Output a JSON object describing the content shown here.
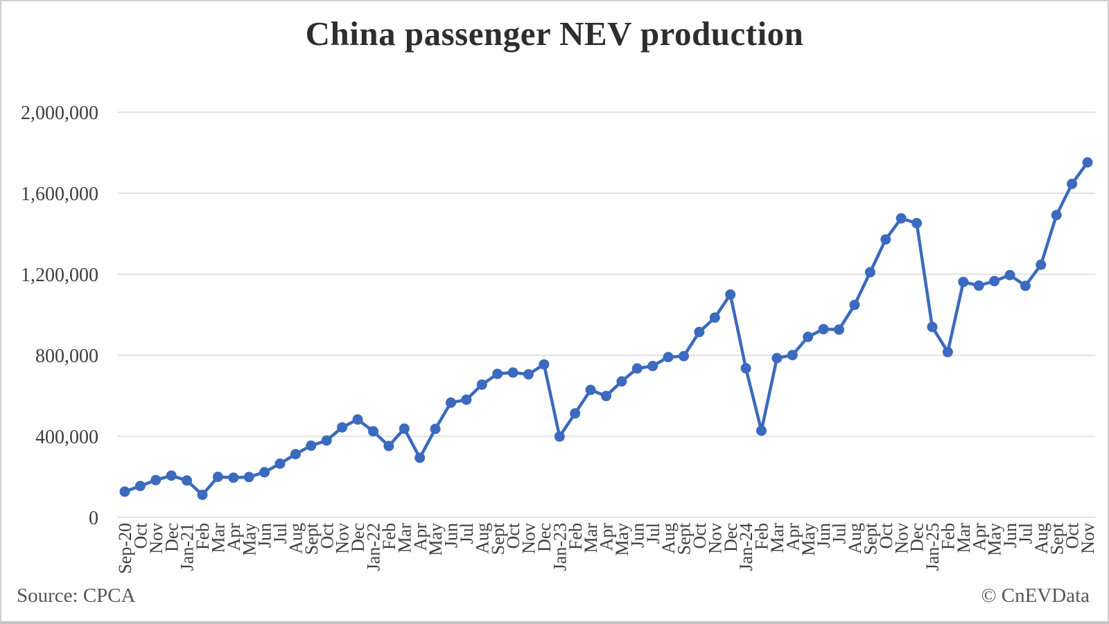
{
  "title": "China passenger NEV production",
  "footer": {
    "source": "Source: CPCA",
    "copyright": "© CnEVData"
  },
  "colors": {
    "line": "#3B6ABE",
    "grid": "#D9D9D9",
    "title_text": "#2E2E2E",
    "axis_text": "#3D3D3D",
    "footer_text": "#555555",
    "background": "#FFFFFF",
    "frame_border": "#CFCFCF"
  },
  "chart_data": {
    "type": "line",
    "title": "China passenger NEV production",
    "series_name": "China passenger NEV monthly production (units)",
    "legend": "none",
    "grid": "horizontal",
    "marker": "circle",
    "ylim": [
      0,
      2000000
    ],
    "ytick_labels": [
      "0",
      "400,000",
      "800,000",
      "1,200,000",
      "1,600,000",
      "2,000,000"
    ],
    "categories": [
      "Sep-20",
      "Oct",
      "Nov",
      "Dec",
      "Jan-21",
      "Feb",
      "Mar",
      "Apr",
      "May",
      "Jun",
      "Jul",
      "Aug",
      "Sept",
      "Oct",
      "Nov",
      "Dec",
      "Jan-22",
      "Feb",
      "Mar",
      "Apr",
      "May",
      "Jun",
      "Jul",
      "Aug",
      "Sept",
      "Oct",
      "Nov",
      "Dec",
      "Jan-23",
      "Feb",
      "Mar",
      "Apr",
      "May",
      "Jun",
      "Jul",
      "Aug",
      "Sept",
      "Oct",
      "Nov",
      "Dec",
      "Jan-24",
      "Feb",
      "Mar",
      "Apr",
      "May",
      "Jun",
      "Jul",
      "Aug",
      "Sept",
      "Oct",
      "Nov",
      "Dec",
      "Jan-25",
      "Feb",
      "Mar",
      "Apr",
      "May",
      "Jun",
      "Jul",
      "Aug",
      "Sept",
      "Oct",
      "Nov"
    ],
    "values": [
      127000,
      155000,
      184000,
      206000,
      182000,
      111000,
      200000,
      196000,
      199000,
      223000,
      265000,
      312000,
      354000,
      379000,
      444000,
      483000,
      425000,
      352000,
      438000,
      294000,
      437000,
      566000,
      581000,
      655000,
      708000,
      715000,
      706000,
      755000,
      399000,
      513000,
      629000,
      599000,
      671000,
      735000,
      747000,
      791000,
      796000,
      915000,
      986000,
      1100000,
      736000,
      428000,
      786000,
      801000,
      891000,
      929000,
      927000,
      1049000,
      1210000,
      1372000,
      1476000,
      1452000,
      940000,
      816000,
      1162000,
      1144000,
      1166000,
      1196000,
      1143000,
      1247000,
      1492000,
      1646000,
      1752000
    ]
  }
}
